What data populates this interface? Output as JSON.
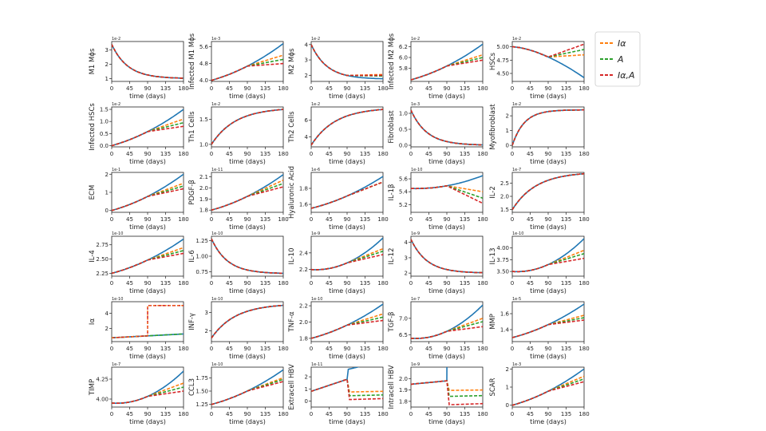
{
  "colors": {
    "baseline": "#1f77b4",
    "I_alpha": "#ff7f0e",
    "A": "#2ca02c",
    "I_alpha_A": "#d62728"
  },
  "legend": [
    {
      "key": "I_alpha",
      "label": "Iα"
    },
    {
      "key": "A",
      "label": "A"
    },
    {
      "key": "I_alpha_A",
      "label": "Iα,A"
    }
  ],
  "chart_data": {
    "type": "line",
    "xlabel": "time (days)",
    "xticks": [
      "0",
      "45",
      "90",
      "135",
      "180"
    ],
    "xlim": [
      0,
      180
    ],
    "intervention_day": 90,
    "series_names": [
      "baseline",
      "I_alpha",
      "A",
      "I_alpha_A"
    ],
    "panels": [
      {
        "ylabel": "M1 Mϕs",
        "exp": "1e-2",
        "yticks": [
          "1",
          "2",
          "3"
        ],
        "ylim": [
          0.8,
          3.6
        ],
        "kind": "decay",
        "y0": 3.4,
        "y1": 1.0
      },
      {
        "ylabel": "Infected M1 Mϕs",
        "exp": "1e-3",
        "yticks": [
          "4.0",
          "4.8",
          "5.6"
        ],
        "ylim": [
          3.95,
          5.85
        ],
        "kind": "grow",
        "y0": 4.0,
        "y1": 5.75,
        "end_I_alpha": 5.2,
        "end_A": 5.0,
        "end_I_alpha_A": 4.8
      },
      {
        "ylabel": "M2 Mϕs",
        "exp": "1e-2",
        "yticks": [
          "2",
          "3",
          "4"
        ],
        "ylim": [
          1.6,
          4.2
        ],
        "kind": "decay",
        "y0": 4.0,
        "y1": 1.75,
        "end_I_alpha": 2.05,
        "end_A": 1.95,
        "end_I_alpha_A": 2.0
      },
      {
        "ylabel": "Infected M2 Mϕs",
        "exp": "1e-2",
        "yticks": [
          "5.8",
          "6.0",
          "6.2"
        ],
        "ylim": [
          5.55,
          6.3
        ],
        "kind": "grow",
        "y0": 5.58,
        "y1": 6.25,
        "end_I_alpha": 6.05,
        "end_A": 6.0,
        "end_I_alpha_A": 5.95
      },
      {
        "ylabel": "HSCs",
        "exp": "1e-2",
        "yticks": [
          "4.50",
          "4.75",
          "5.00"
        ],
        "ylim": [
          4.35,
          5.1
        ],
        "kind": "decline",
        "y0": 5.0,
        "y1": 4.42,
        "end_I_alpha": 4.85,
        "end_A": 4.95,
        "end_I_alpha_A": 5.05
      },
      {
        "ylabel": "Infected HSCs",
        "exp": "1e-2",
        "yticks": [
          "0.0",
          "0.5",
          "1.0",
          "1.5"
        ],
        "ylim": [
          -0.05,
          1.6
        ],
        "kind": "grow",
        "y0": 0.0,
        "y1": 1.5,
        "end_I_alpha": 1.1,
        "end_A": 0.95,
        "end_I_alpha_A": 0.8
      },
      {
        "ylabel": "Th1 Cells",
        "exp": "1e-2",
        "yticks": [
          "1.0",
          "1.5"
        ],
        "ylim": [
          0.95,
          1.75
        ],
        "kind": "sat",
        "y0": 1.0,
        "y1": 1.7
      },
      {
        "ylabel": "Th2 Cells",
        "exp": "1e-2",
        "yticks": [
          "4",
          "6"
        ],
        "ylim": [
          2.8,
          7.6
        ],
        "kind": "sat",
        "y0": 3.0,
        "y1": 7.3
      },
      {
        "ylabel": "Fibroblast",
        "exp": "1e-3",
        "yticks": [
          "0.0",
          "0.5",
          "1.0"
        ],
        "ylim": [
          -0.05,
          1.2
        ],
        "kind": "decay",
        "y0": 1.1,
        "y1": 0.0
      },
      {
        "ylabel": "Myofibroblast",
        "exp": "1e-2",
        "yticks": [
          "0",
          "1",
          "2"
        ],
        "ylim": [
          -0.1,
          2.6
        ],
        "kind": "satfast",
        "y0": 0.0,
        "y1": 2.4
      },
      {
        "ylabel": "ECM",
        "exp": "1e-1",
        "yticks": [
          "0",
          "1",
          "2"
        ],
        "ylim": [
          -0.1,
          2.1
        ],
        "kind": "grow",
        "y0": 0.0,
        "y1": 2.0,
        "end_I_alpha": 1.5,
        "end_A": 1.35,
        "end_I_alpha_A": 1.2
      },
      {
        "ylabel": "PDGF-β",
        "exp": "1e-11",
        "yticks": [
          "1.8",
          "1.9",
          "2.0",
          "2.1"
        ],
        "ylim": [
          1.78,
          2.14
        ],
        "kind": "grow",
        "y0": 1.8,
        "y1": 2.12,
        "end_I_alpha": 2.07,
        "end_A": 2.04,
        "end_I_alpha_A": 2.01
      },
      {
        "ylabel": "Hyaluronic Acid",
        "exp": "1e-6",
        "yticks": [
          "1.6",
          "1.8"
        ],
        "ylim": [
          1.5,
          2.0
        ],
        "kind": "grow",
        "y0": 1.55,
        "y1": 1.95,
        "end_I_alpha": 1.88,
        "end_A": 1.88,
        "end_I_alpha_A": 1.88
      },
      {
        "ylabel": "IL-1β",
        "exp": "1e-10",
        "yticks": [
          "5.2",
          "5.4",
          "5.6"
        ],
        "ylim": [
          5.08,
          5.7
        ],
        "kind": "dip",
        "y0": 5.45,
        "y1": 5.65,
        "end_I_alpha": 5.4,
        "end_A": 5.3,
        "end_I_alpha_A": 5.22
      },
      {
        "ylabel": "IL-2",
        "exp": "1e-7",
        "yticks": [
          "1.5",
          "2.0",
          "2.5"
        ],
        "ylim": [
          1.4,
          2.9
        ],
        "kind": "sat",
        "y0": 1.5,
        "y1": 2.85
      },
      {
        "ylabel": "IL-4",
        "exp": "1e-10",
        "yticks": [
          "2.25",
          "2.50",
          "2.75"
        ],
        "ylim": [
          2.2,
          2.9
        ],
        "kind": "grow",
        "y0": 2.25,
        "y1": 2.85,
        "end_I_alpha": 2.7,
        "end_A": 2.65,
        "end_I_alpha_A": 2.6
      },
      {
        "ylabel": "IL-6",
        "exp": "1e-10",
        "yticks": [
          "0.75",
          "1.00",
          "1.25"
        ],
        "ylim": [
          0.68,
          1.32
        ],
        "kind": "decay",
        "y0": 1.28,
        "y1": 0.72
      },
      {
        "ylabel": "IL-10",
        "exp": "1e-9",
        "yticks": [
          "2.2",
          "2.4"
        ],
        "ylim": [
          2.12,
          2.6
        ],
        "kind": "dip",
        "y0": 2.2,
        "y1": 2.58,
        "end_I_alpha": 2.45,
        "end_A": 2.42,
        "end_I_alpha_A": 2.38
      },
      {
        "ylabel": "IL-12",
        "exp": "1e-9",
        "yticks": [
          "2",
          "3",
          "4"
        ],
        "ylim": [
          1.8,
          4.4
        ],
        "kind": "decay",
        "y0": 4.2,
        "y1": 2.0
      },
      {
        "ylabel": "IL-13",
        "exp": "1e-10",
        "yticks": [
          "3.50",
          "3.75",
          "4.00"
        ],
        "ylim": [
          3.4,
          4.25
        ],
        "kind": "dip",
        "y0": 3.5,
        "y1": 4.2,
        "end_I_alpha": 3.95,
        "end_A": 3.88,
        "end_I_alpha_A": 3.78
      },
      {
        "ylabel": "Iα",
        "exp": "1e-10",
        "yticks": [
          "2",
          "4"
        ],
        "ylim": [
          0.3,
          5.5
        ],
        "kind": "step",
        "y0": 0.8,
        "y1": 1.3,
        "step_to": 5.0
      },
      {
        "ylabel": "INF-γ",
        "exp": "1e-10",
        "yticks": [
          "2",
          "3"
        ],
        "ylim": [
          1.4,
          3.6
        ],
        "kind": "sat",
        "y0": 1.6,
        "y1": 3.4
      },
      {
        "ylabel": "TNF-α",
        "exp": "1e-10",
        "yticks": [
          "1.8",
          "2.0",
          "2.2"
        ],
        "ylim": [
          1.76,
          2.25
        ],
        "kind": "grow",
        "y0": 1.8,
        "y1": 2.22,
        "end_I_alpha": 2.1,
        "end_A": 2.06,
        "end_I_alpha_A": 2.02
      },
      {
        "ylabel": "TGF-β",
        "exp": "1e-7",
        "yticks": [
          "6.5",
          "7.0"
        ],
        "ylim": [
          6.3,
          7.5
        ],
        "kind": "dip",
        "y0": 6.4,
        "y1": 7.4,
        "end_I_alpha": 7.0,
        "end_A": 6.9,
        "end_I_alpha_A": 6.75
      },
      {
        "ylabel": "MMP",
        "exp": "1e-5",
        "yticks": [
          "1.4",
          "1.6"
        ],
        "ylim": [
          1.25,
          1.75
        ],
        "kind": "grow",
        "y0": 1.3,
        "y1": 1.72,
        "end_I_alpha": 1.58,
        "end_A": 1.55,
        "end_I_alpha_A": 1.52
      },
      {
        "ylabel": "TIMP",
        "exp": "1e-7",
        "yticks": [
          "4.00",
          "4.25"
        ],
        "ylim": [
          3.9,
          4.4
        ],
        "kind": "dip",
        "y0": 3.95,
        "y1": 4.35,
        "end_I_alpha": 4.2,
        "end_A": 4.15,
        "end_I_alpha_A": 4.1
      },
      {
        "ylabel": "CCL3",
        "exp": "1e-10",
        "yticks": [
          "1.25",
          "1.50",
          "1.75"
        ],
        "ylim": [
          1.2,
          1.95
        ],
        "kind": "grow",
        "y0": 1.25,
        "y1": 1.9,
        "end_I_alpha": 1.75,
        "end_A": 1.72,
        "end_I_alpha_A": 1.68
      },
      {
        "ylabel": "Extracell HBV",
        "exp": "1e-11",
        "yticks": [
          "0",
          "1",
          "2"
        ],
        "ylim": [
          -0.5,
          2.8
        ],
        "kind": "drop",
        "y0": 0.8,
        "y1": 2.5,
        "peak": 1.8,
        "end_I_alpha": 0.8,
        "end_A": 0.5,
        "end_I_alpha_A": 0.2
      },
      {
        "ylabel": "Intracell HBV",
        "exp": "1e-9",
        "yticks": [
          "1.8",
          "1.9",
          "2.0"
        ],
        "ylim": [
          1.75,
          2.1
        ],
        "kind": "drop",
        "y0": 1.95,
        "y1": 2.08,
        "peak": 1.98,
        "end_I_alpha": 1.9,
        "end_A": 1.85,
        "end_I_alpha_A": 1.78
      },
      {
        "ylabel": "SCAR",
        "exp": "1e-3",
        "yticks": [
          "0",
          "1",
          "2"
        ],
        "ylim": [
          -0.1,
          2.1
        ],
        "kind": "grow",
        "y0": 0.0,
        "y1": 2.0,
        "end_I_alpha": 1.6,
        "end_A": 1.45,
        "end_I_alpha_A": 1.3
      }
    ]
  }
}
